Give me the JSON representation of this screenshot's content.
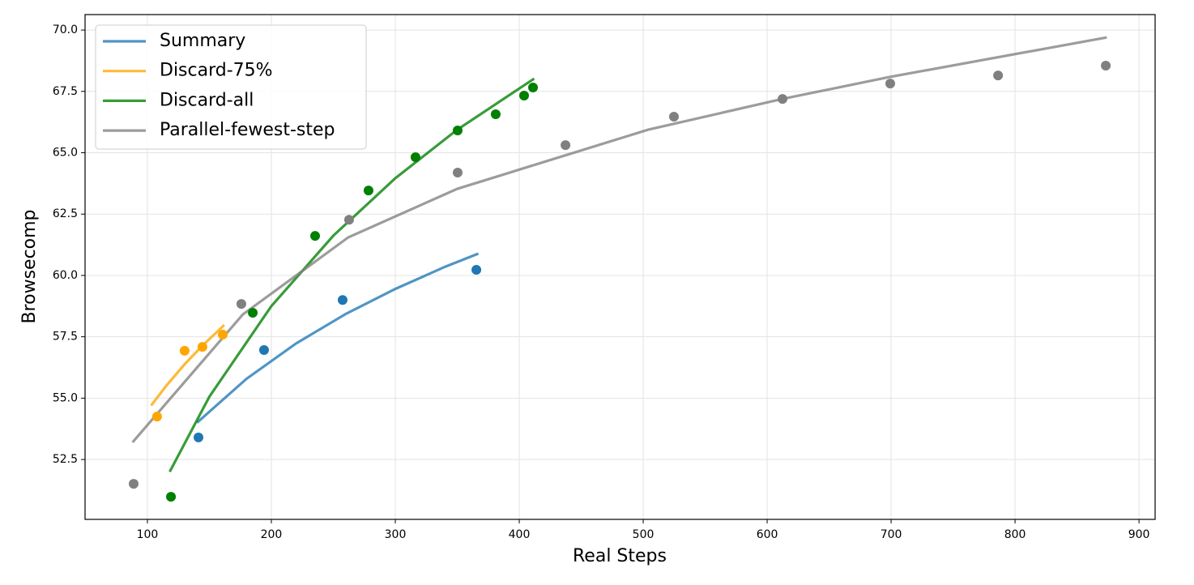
{
  "chart_data": {
    "type": "scatter",
    "xlabel": "Real Steps",
    "ylabel": "Browsecomp",
    "xlim": [
      49.7,
      913
    ],
    "ylim": [
      50.06,
      70.63
    ],
    "xticks": [
      100,
      200,
      300,
      400,
      500,
      600,
      700,
      800,
      900
    ],
    "yticks": [
      52.5,
      {
        "value": 55,
        "label": "55.0"
      },
      57.5,
      {
        "value": 60,
        "label": "60.0"
      },
      62.5,
      {
        "value": 65,
        "label": "65.0"
      },
      67.5,
      {
        "value": 70,
        "label": "70.0"
      }
    ],
    "grid": true,
    "legend": "upper left",
    "series": [
      {
        "name": "Summary",
        "color": "#1f77b4",
        "x": [
          141.2,
          194.1,
          257.5,
          365.4
        ],
        "values": [
          53.4,
          56.96,
          59.0,
          60.23
        ],
        "fit": {
          "x": [
            140,
            180,
            220,
            260,
            300,
            340,
            367
          ],
          "values": [
            54.0,
            55.79,
            57.23,
            58.43,
            59.45,
            60.35,
            60.89
          ]
        }
      },
      {
        "name": "Discard-75%",
        "color": "#ffa500",
        "x": [
          107.8,
          130,
          144.4,
          160.8
        ],
        "values": [
          54.25,
          56.93,
          57.09,
          57.59
        ],
        "fit": {
          "x": [
            103,
            115,
            130,
            145,
            162
          ],
          "values": [
            54.7,
            55.49,
            56.38,
            57.17,
            57.98
          ]
        }
      },
      {
        "name": "Discard-all",
        "color": "#008000",
        "x": [
          119,
          185,
          235.3,
          278.4,
          316.3,
          350.3,
          381,
          403.9,
          411.1
        ],
        "values": [
          50.98,
          58.48,
          61.61,
          63.46,
          64.82,
          65.91,
          66.57,
          67.33,
          67.66
        ],
        "fit": {
          "x": [
            118,
            150,
            200,
            250,
            300,
            350,
            412
          ],
          "values": [
            52.0,
            55.06,
            58.75,
            61.62,
            63.96,
            65.94,
            68.02
          ]
        }
      },
      {
        "name": "Parallel-fewest-step",
        "color": "#808080",
        "x": [
          88.9,
          175.8,
          262.7,
          350.3,
          437.3,
          524.8,
          612.4,
          699.3,
          786.3,
          873.2
        ],
        "values": [
          51.51,
          58.84,
          62.27,
          64.19,
          65.31,
          66.47,
          67.19,
          67.82,
          68.15,
          68.55
        ],
        "fit": {
          "x": [
            88,
            177,
            262,
            350,
            504,
            612,
            699,
            874
          ],
          "values": [
            53.2,
            58.41,
            61.55,
            63.53,
            65.94,
            67.19,
            68.09,
            69.7
          ]
        }
      }
    ]
  }
}
